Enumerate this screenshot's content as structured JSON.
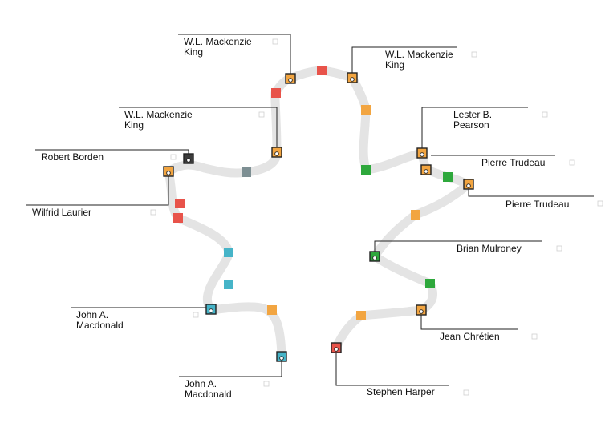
{
  "colors": {
    "conservative": "#f2a541",
    "liberal": "#e8534a",
    "unionist": "#3c3c3c",
    "liberal_conservative": "#46b4c8",
    "other_conservative": "#7d8f93",
    "ndp_green": "#2ea83c",
    "path": "#e4e4e4"
  },
  "labels": [
    {
      "id": "wlmk-1",
      "lines": [
        "W.L. Mackenzie",
        "King"
      ]
    },
    {
      "id": "wlmk-2",
      "lines": [
        "W.L. Mackenzie",
        "King"
      ]
    },
    {
      "id": "wlmk-3",
      "lines": [
        "W.L. Mackenzie",
        "King"
      ]
    },
    {
      "id": "borden",
      "lines": [
        "Robert Borden"
      ]
    },
    {
      "id": "laurier",
      "lines": [
        "Wilfrid Laurier"
      ]
    },
    {
      "id": "macdonald-1",
      "lines": [
        "John A.",
        "Macdonald"
      ]
    },
    {
      "id": "macdonald-2",
      "lines": [
        "John A.",
        "Macdonald"
      ]
    },
    {
      "id": "pearson",
      "lines": [
        "Lester B.",
        "Pearson"
      ]
    },
    {
      "id": "trudeau-1",
      "lines": [
        "Pierre Trudeau"
      ]
    },
    {
      "id": "trudeau-2",
      "lines": [
        "Pierre Trudeau"
      ]
    },
    {
      "id": "mulroney",
      "lines": [
        "Brian Mulroney"
      ]
    },
    {
      "id": "chretien",
      "lines": [
        "Jean Chrétien"
      ]
    },
    {
      "id": "harper",
      "lines": [
        "Stephen Harper"
      ]
    }
  ]
}
